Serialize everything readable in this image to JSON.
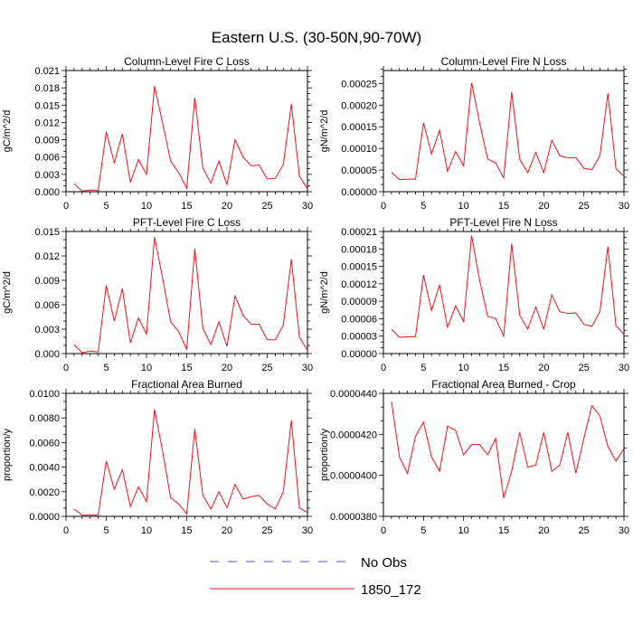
{
  "title": "Eastern U.S. (30-50N,90-70W)",
  "colors": {
    "line": "#e8141c",
    "frame": "#000000",
    "obs": "#5a5ab4"
  },
  "legend": [
    {
      "label": "No Obs",
      "style": "dashed",
      "color": "#5a5ab4"
    },
    {
      "label": "1850_172",
      "style": "solid",
      "color": "#e8141c"
    }
  ],
  "chart_data": [
    {
      "type": "line",
      "title": "Column-Level Fire C Loss",
      "ylabel": "gC/m^2/d",
      "xlim": [
        0,
        30
      ],
      "ylim": [
        0,
        0.021
      ],
      "xticks": [
        0,
        5,
        10,
        15,
        20,
        25,
        30
      ],
      "xtick_labels": [
        "0",
        "5",
        "10",
        "15",
        "20",
        "25",
        "30"
      ],
      "yticks": [
        0,
        0.003,
        0.006,
        0.009,
        0.012,
        0.015,
        0.018,
        0.021
      ],
      "ytick_labels": [
        "0.000",
        "0.003",
        "0.006",
        "0.009",
        "0.012",
        "0.015",
        "0.018",
        "0.021"
      ],
      "x": [
        1,
        2,
        3,
        4,
        5,
        6,
        7,
        8,
        9,
        10,
        11,
        12,
        13,
        14,
        15,
        16,
        17,
        18,
        19,
        20,
        21,
        22,
        23,
        24,
        25,
        26,
        27,
        28,
        29,
        30
      ],
      "series": [
        {
          "values": [
            0.0014,
            0.0001,
            0.0003,
            0.0002,
            0.0104,
            0.005,
            0.01,
            0.0016,
            0.0056,
            0.003,
            0.0183,
            0.0119,
            0.0053,
            0.0033,
            0.0006,
            0.0163,
            0.0041,
            0.0015,
            0.0053,
            0.0012,
            0.009,
            0.006,
            0.0045,
            0.0046,
            0.0022,
            0.0023,
            0.0047,
            0.0152,
            0.0027,
            0.0005
          ]
        }
      ]
    },
    {
      "type": "line",
      "title": "Column-Level Fire N Loss",
      "ylabel": "gN/m^2/d",
      "xlim": [
        0,
        30
      ],
      "ylim": [
        0,
        0.00028
      ],
      "xticks": [
        0,
        5,
        10,
        15,
        20,
        25,
        30
      ],
      "xtick_labels": [
        "0",
        "5",
        "10",
        "15",
        "20",
        "25",
        "30"
      ],
      "yticks": [
        0,
        5e-05,
        0.0001,
        0.00015,
        0.0002,
        0.00025
      ],
      "ytick_labels": [
        "0.00000",
        "0.00005",
        "0.00010",
        "0.00015",
        "0.00020",
        "0.00025"
      ],
      "x": [
        1,
        2,
        3,
        4,
        5,
        6,
        7,
        8,
        9,
        10,
        11,
        12,
        13,
        14,
        15,
        16,
        17,
        18,
        19,
        20,
        21,
        22,
        23,
        24,
        25,
        26,
        27,
        28,
        29,
        30
      ],
      "series": [
        {
          "values": [
            4.5e-05,
            2.8e-05,
            2.9e-05,
            2.9e-05,
            0.000159,
            8.7e-05,
            0.000142,
            4.7e-05,
            9.3e-05,
            6e-05,
            0.000252,
            0.000159,
            7.6e-05,
            6.6e-05,
            3.2e-05,
            0.00023,
            7.5e-05,
            4.4e-05,
            9.1e-05,
            4.4e-05,
            0.000119,
            8.3e-05,
            7.8e-05,
            7.9e-05,
            5.4e-05,
            5.1e-05,
            8.3e-05,
            0.000227,
            5.3e-05,
            3.6e-05
          ]
        }
      ]
    },
    {
      "type": "line",
      "title": "PFT-Level Fire C Loss",
      "ylabel": "gC/m^2/d",
      "xlim": [
        0,
        30
      ],
      "ylim": [
        0,
        0.015
      ],
      "xticks": [
        0,
        5,
        10,
        15,
        20,
        25,
        30
      ],
      "xtick_labels": [
        "0",
        "5",
        "10",
        "15",
        "20",
        "25",
        "30"
      ],
      "yticks": [
        0,
        0.003,
        0.006,
        0.009,
        0.012,
        0.015
      ],
      "ytick_labels": [
        "0.000",
        "0.003",
        "0.006",
        "0.009",
        "0.012",
        "0.015"
      ],
      "x": [
        1,
        2,
        3,
        4,
        5,
        6,
        7,
        8,
        9,
        10,
        11,
        12,
        13,
        14,
        15,
        16,
        17,
        18,
        19,
        20,
        21,
        22,
        23,
        24,
        25,
        26,
        27,
        28,
        29,
        30
      ],
      "series": [
        {
          "values": [
            0.0011,
            0.0001,
            0.0003,
            0.0002,
            0.0084,
            0.004,
            0.008,
            0.0013,
            0.0044,
            0.0024,
            0.0143,
            0.0093,
            0.0039,
            0.0027,
            0.0005,
            0.0129,
            0.0031,
            0.0011,
            0.0039,
            0.0009,
            0.0071,
            0.0047,
            0.0036,
            0.0036,
            0.0017,
            0.0017,
            0.0035,
            0.0116,
            0.002,
            0.0004
          ]
        }
      ]
    },
    {
      "type": "line",
      "title": "PFT-Level Fire N Loss",
      "ylabel": "gN/m^2/d",
      "xlim": [
        0,
        30
      ],
      "ylim": [
        0,
        0.00021
      ],
      "xticks": [
        0,
        5,
        10,
        15,
        20,
        25,
        30
      ],
      "xtick_labels": [
        "0",
        "5",
        "10",
        "15",
        "20",
        "25",
        "30"
      ],
      "yticks": [
        0,
        3e-05,
        6e-05,
        9e-05,
        0.00012,
        0.00015,
        0.00018,
        0.00021
      ],
      "ytick_labels": [
        "0.00000",
        "0.00003",
        "0.00006",
        "0.00009",
        "0.00012",
        "0.00015",
        "0.00018",
        "0.00021"
      ],
      "x": [
        1,
        2,
        3,
        4,
        5,
        6,
        7,
        8,
        9,
        10,
        11,
        12,
        13,
        14,
        15,
        16,
        17,
        18,
        19,
        20,
        21,
        22,
        23,
        24,
        25,
        26,
        27,
        28,
        29,
        30
      ],
      "series": [
        {
          "values": [
            4.2e-05,
            2.8e-05,
            2.9e-05,
            2.9e-05,
            0.000135,
            7.4e-05,
            0.000118,
            4.5e-05,
            8.2e-05,
            5.5e-05,
            0.000203,
            0.000126,
            6.4e-05,
            6e-05,
            3e-05,
            0.000189,
            6.6e-05,
            4.2e-05,
            8e-05,
            4.2e-05,
            0.000101,
            7.2e-05,
            6.9e-05,
            7e-05,
            5e-05,
            4.7e-05,
            7.2e-05,
            0.000184,
            4.8e-05,
            3.3e-05
          ]
        }
      ]
    },
    {
      "type": "line",
      "title": "Fractional Area Burned",
      "ylabel": "proportion/y",
      "xlim": [
        0,
        30
      ],
      "ylim": [
        0,
        0.01
      ],
      "xticks": [
        0,
        5,
        10,
        15,
        20,
        25,
        30
      ],
      "xtick_labels": [
        "0",
        "5",
        "10",
        "15",
        "20",
        "25",
        "30"
      ],
      "yticks": [
        0,
        0.002,
        0.004,
        0.006,
        0.008,
        0.01
      ],
      "ytick_labels": [
        "0.0000",
        "0.0020",
        "0.0040",
        "0.0060",
        "0.0080",
        "0.0100"
      ],
      "x": [
        1,
        2,
        3,
        4,
        5,
        6,
        7,
        8,
        9,
        10,
        11,
        12,
        13,
        14,
        15,
        16,
        17,
        18,
        19,
        20,
        21,
        22,
        23,
        24,
        25,
        26,
        27,
        28,
        29,
        30
      ],
      "series": [
        {
          "values": [
            0.0006,
            0.0001,
            0.0001,
            0.0001,
            0.0045,
            0.0022,
            0.0038,
            0.0008,
            0.0024,
            0.0012,
            0.0087,
            0.0053,
            0.0015,
            0.001,
            0.0002,
            0.0071,
            0.0017,
            0.0006,
            0.002,
            0.0007,
            0.0026,
            0.0014,
            0.0016,
            0.0017,
            0.001,
            0.0006,
            0.002,
            0.0078,
            0.0007,
            0.0003
          ]
        }
      ]
    },
    {
      "type": "line",
      "title": "Fractional Area Burned - Crop",
      "ylabel": "proportion/y",
      "xlim": [
        0,
        30
      ],
      "ylim": [
        3.8e-05,
        4.4e-05
      ],
      "xticks": [
        0,
        5,
        10,
        15,
        20,
        25,
        30
      ],
      "xtick_labels": [
        "0",
        "5",
        "10",
        "15",
        "20",
        "25",
        "30"
      ],
      "yticks": [
        3.8e-05,
        4e-05,
        4.2e-05,
        4.4e-05
      ],
      "ytick_labels": [
        "0.0000380",
        "0.0000400",
        "0.0000420",
        "0.0000440"
      ],
      "x": [
        1,
        2,
        3,
        4,
        5,
        6,
        7,
        8,
        9,
        10,
        11,
        12,
        13,
        14,
        15,
        16,
        17,
        18,
        19,
        20,
        21,
        22,
        23,
        24,
        25,
        26,
        27,
        28,
        29,
        30
      ],
      "series": [
        {
          "values": [
            4.36e-05,
            4.09e-05,
            4.01e-05,
            4.19e-05,
            4.26e-05,
            4.09e-05,
            4.02e-05,
            4.24e-05,
            4.22e-05,
            4.1e-05,
            4.15e-05,
            4.15e-05,
            4.1e-05,
            4.18e-05,
            3.89e-05,
            4.02e-05,
            4.21e-05,
            4.04e-05,
            4.05e-05,
            4.21e-05,
            4.02e-05,
            4.05e-05,
            4.21e-05,
            4.01e-05,
            4.18e-05,
            4.34e-05,
            4.29e-05,
            4.14e-05,
            4.07e-05,
            4.13e-05
          ]
        }
      ]
    }
  ]
}
